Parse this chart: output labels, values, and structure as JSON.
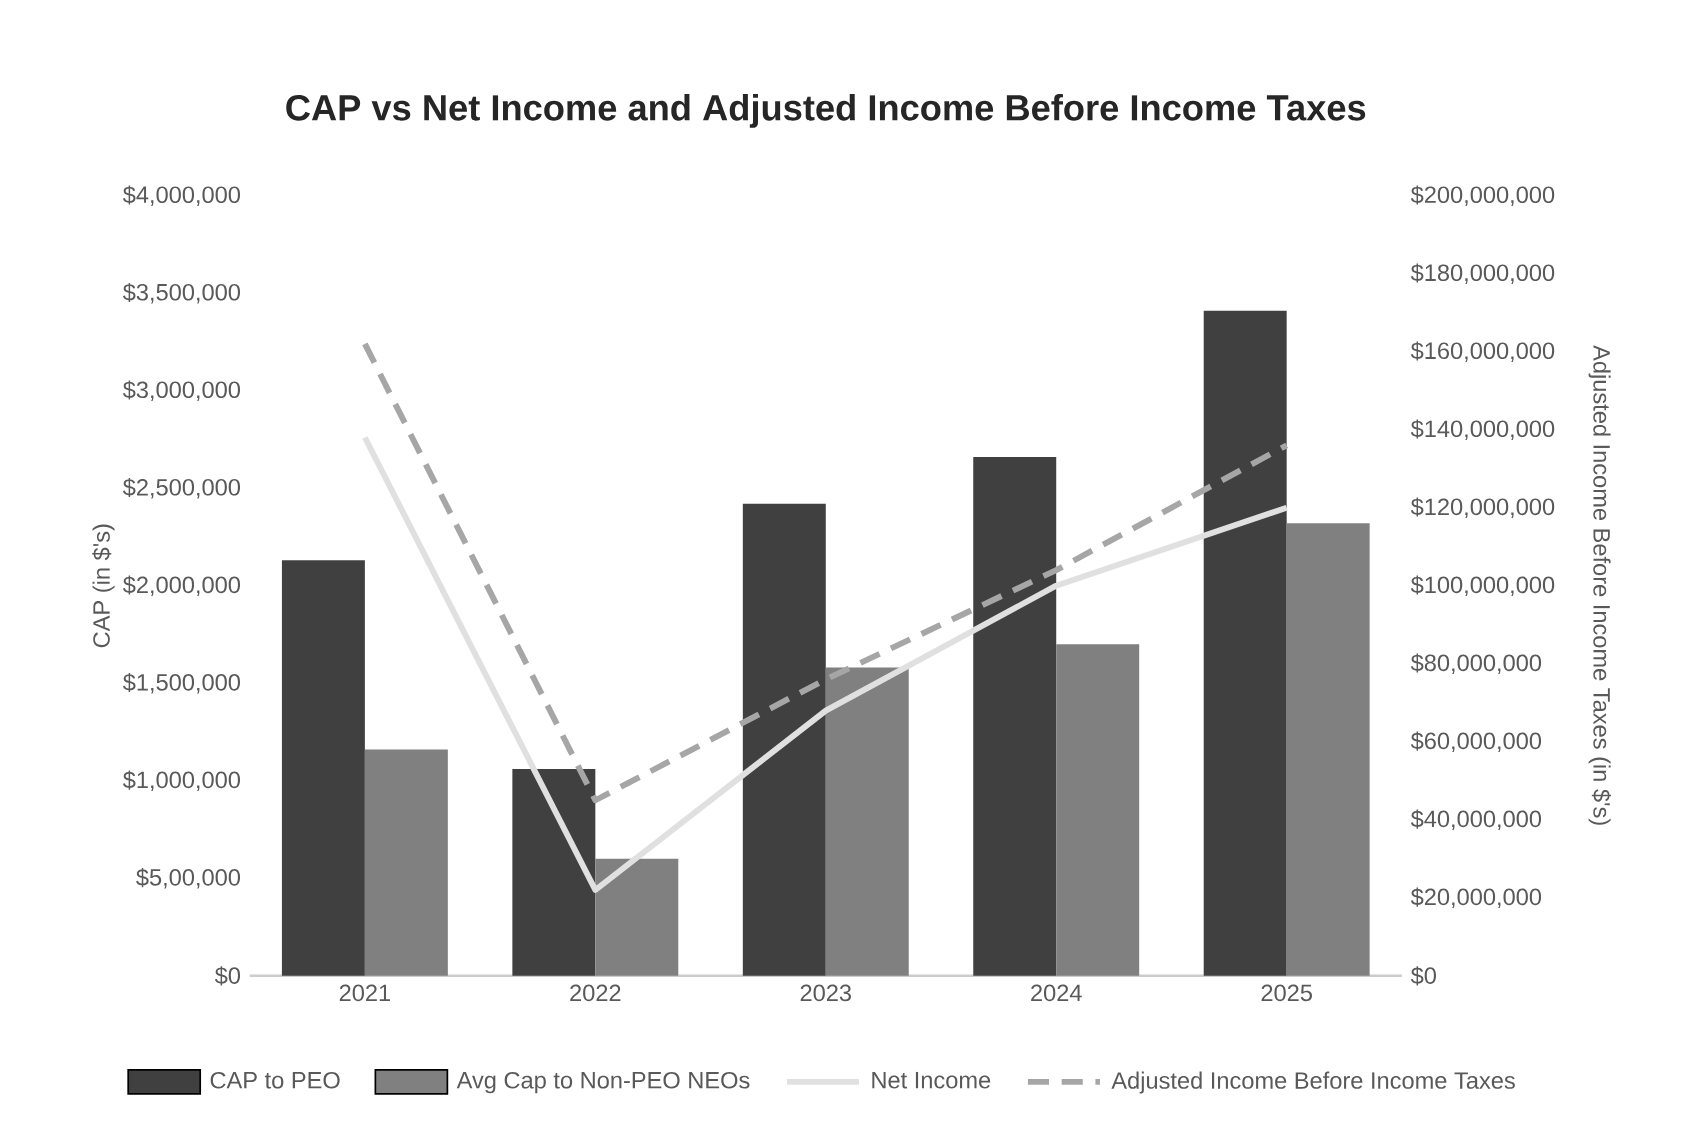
{
  "chart_data": {
    "type": "bar",
    "title": "CAP vs Net Income and Adjusted Income Before Income Taxes",
    "ylabel": "CAP (in $'s)",
    "y2label": "Adjusted Income Before Income Taxes (in $'s)",
    "categories": [
      "2021",
      "2022",
      "2023",
      "2024",
      "2025"
    ],
    "series": [
      {
        "name": "CAP to PEO",
        "color": "#404040",
        "values": [
          2130000,
          1060000,
          2420000,
          2660000,
          3410000
        ]
      },
      {
        "name": "Avg Cap to Non-PEO NEOs",
        "color": "#808080",
        "values": [
          1160000,
          600000,
          1580000,
          1700000,
          2320000
        ]
      },
      {
        "name": "Net Income",
        "type": "line",
        "axis": "y2",
        "color": "#e0e0e0",
        "line_style": "solid",
        "values": [
          138000000,
          22000000,
          68000000,
          100000000,
          120000000
        ]
      },
      {
        "name": "Adjusted Income Before Income Taxes",
        "type": "line",
        "axis": "y2",
        "color": "#a6a6a6",
        "line_style": "dashed",
        "values": [
          162000000,
          45000000,
          76000000,
          104000000,
          136000000
        ]
      }
    ],
    "ylim": [
      0,
      4000000
    ],
    "yticks": [
      {
        "value": 0,
        "label": "$0"
      },
      {
        "value": 500000,
        "label": "$5,00,000"
      },
      {
        "value": 1000000,
        "label": "$1,000,000"
      },
      {
        "value": 1500000,
        "label": "$1,500,000"
      },
      {
        "value": 2000000,
        "label": "$2,000,000"
      },
      {
        "value": 2500000,
        "label": "$2,500,000"
      },
      {
        "value": 3000000,
        "label": "$3,000,000"
      },
      {
        "value": 3500000,
        "label": "$3,500,000"
      },
      {
        "value": 4000000,
        "label": "$4,000,000"
      }
    ],
    "y2lim": [
      0,
      200000000
    ],
    "y2ticks": [
      {
        "value": 0,
        "label": "$0"
      },
      {
        "value": 20000000,
        "label": "$20,000,000"
      },
      {
        "value": 40000000,
        "label": "$40,000,000"
      },
      {
        "value": 60000000,
        "label": "$60,000,000"
      },
      {
        "value": 80000000,
        "label": "$80,000,000"
      },
      {
        "value": 100000000,
        "label": "$100,000,000"
      },
      {
        "value": 120000000,
        "label": "$120,000,000"
      },
      {
        "value": 140000000,
        "label": "$140,000,000"
      },
      {
        "value": 160000000,
        "label": "$160,000,000"
      },
      {
        "value": 180000000,
        "label": "$180,000,000"
      },
      {
        "value": 200000000,
        "label": "$200,000,000"
      }
    ],
    "legend": "bottom"
  }
}
